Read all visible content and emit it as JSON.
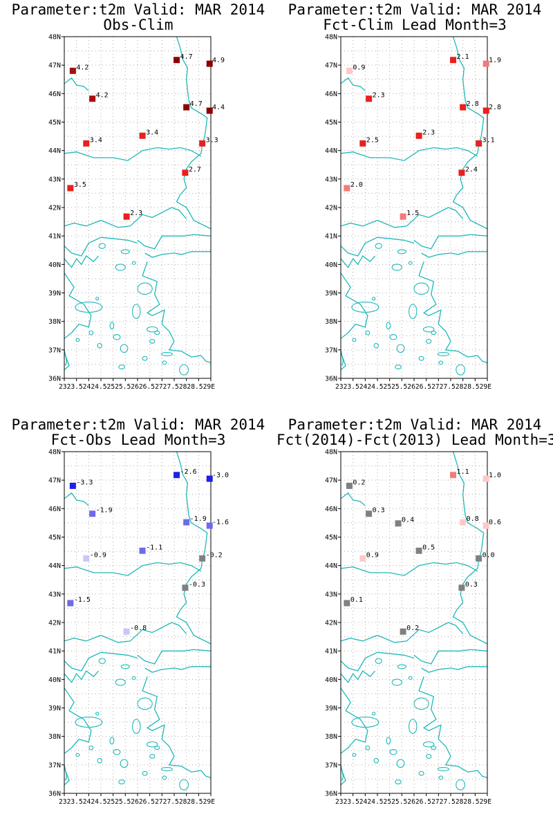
{
  "lat_labels": [
    "48N",
    "47N",
    "46N",
    "45N",
    "44N",
    "43N",
    "42N",
    "41N",
    "40N",
    "39N",
    "38N",
    "37N",
    "36N"
  ],
  "lon_label_text": "2323.52424.52525.52626.52727.52828.529E",
  "colors": {
    "coast": "#1fb8b8",
    "grid": "#a8a8a8",
    "frame": "#000000"
  },
  "stations": [
    {
      "lon": 23.35,
      "lat": 46.8
    },
    {
      "lon": 24.15,
      "lat": 45.82
    },
    {
      "lon": 23.9,
      "lat": 44.25
    },
    {
      "lon": 23.25,
      "lat": 42.68
    },
    {
      "lon": 25.55,
      "lat": 41.68
    },
    {
      "lon": 26.2,
      "lat": 44.52
    },
    {
      "lon": 27.6,
      "lat": 47.18
    },
    {
      "lon": 28.0,
      "lat": 45.52
    },
    {
      "lon": 28.95,
      "lat": 47.05
    },
    {
      "lon": 28.95,
      "lat": 45.4
    },
    {
      "lon": 28.65,
      "lat": 44.25
    },
    {
      "lon": 27.95,
      "lat": 43.22
    }
  ],
  "panels": [
    {
      "title_line1": "Parameter:t2m Valid: MAR 2014",
      "title_line2": "Obs-Clim",
      "points": [
        {
          "label": "4.2",
          "color": "#a31010"
        },
        {
          "label": "4.2",
          "color": "#a31010"
        },
        {
          "label": "3.4",
          "color": "#e82020"
        },
        {
          "label": "3.5",
          "color": "#e82020"
        },
        {
          "label": "2.3",
          "color": "#e82020"
        },
        {
          "label": "3.4",
          "color": "#e82020"
        },
        {
          "label": "4.7",
          "color": "#8b0000"
        },
        {
          "label": "4.7",
          "color": "#8b0000"
        },
        {
          "label": "4.9",
          "color": "#8b0000"
        },
        {
          "label": "4.4",
          "color": "#8b0000"
        },
        {
          "label": "3.3",
          "color": "#e82020"
        },
        {
          "label": "2.7",
          "color": "#e82020"
        }
      ]
    },
    {
      "title_line1": "Parameter:t2m Valid: MAR 2014",
      "title_line2": "Fct-Clim Lead Month=3",
      "points": [
        {
          "label": "0.9",
          "color": "#ffc8c8"
        },
        {
          "label": "2.3",
          "color": "#e82020"
        },
        {
          "label": "2.5",
          "color": "#e82020"
        },
        {
          "label": "2.0",
          "color": "#f47a7a"
        },
        {
          "label": "1.5",
          "color": "#f47a7a"
        },
        {
          "label": "2.3",
          "color": "#e82020"
        },
        {
          "label": "2.1",
          "color": "#e82020"
        },
        {
          "label": "2.8",
          "color": "#e82020"
        },
        {
          "label": "1.9",
          "color": "#f47a7a"
        },
        {
          "label": "2.8",
          "color": "#e82020"
        },
        {
          "label": "3.1",
          "color": "#e82020"
        },
        {
          "label": "2.4",
          "color": "#e82020"
        }
      ]
    },
    {
      "title_line1": "Parameter:t2m Valid: MAR 2014",
      "title_line2": "Fct-Obs Lead Month=3",
      "points": [
        {
          "label": "-3.3",
          "color": "#2020e6"
        },
        {
          "label": "-1.9",
          "color": "#6b6bec"
        },
        {
          "label": "-0.9",
          "color": "#c8c8f8"
        },
        {
          "label": "-1.5",
          "color": "#6b6bec"
        },
        {
          "label": "-0.8",
          "color": "#c8c8f8"
        },
        {
          "label": "-1.1",
          "color": "#6b6bec"
        },
        {
          "label": "-2.6",
          "color": "#2020e6"
        },
        {
          "label": "-1.9",
          "color": "#6b6bec"
        },
        {
          "label": "-3.0",
          "color": "#2020e6"
        },
        {
          "label": "-1.6",
          "color": "#6b6bec"
        },
        {
          "label": "-0.2",
          "color": "#808080"
        },
        {
          "label": "-0.3",
          "color": "#808080"
        }
      ]
    },
    {
      "title_line1": "Parameter:t2m Valid: MAR 2014",
      "title_line2": "Fct(2014)-Fct(2013) Lead Month=3",
      "points": [
        {
          "label": "0.2",
          "color": "#808080"
        },
        {
          "label": "0.3",
          "color": "#808080"
        },
        {
          "label": "0.9",
          "color": "#ffc8c8"
        },
        {
          "label": "0.1",
          "color": "#808080"
        },
        {
          "label": "0.2",
          "color": "#808080"
        },
        {
          "label": "0.5",
          "color": "#808080"
        },
        {
          "label": "1.1",
          "color": "#f47a7a"
        },
        {
          "label": "0.8",
          "color": "#ffc8c8"
        },
        {
          "label": "1.0",
          "color": "#ffc8c8"
        },
        {
          "label": "0.6",
          "color": "#ffc8c8"
        },
        {
          "label": "0.0",
          "color": "#808080"
        },
        {
          "label": "0.3",
          "color": "#808080"
        }
      ],
      "extra_points": [
        {
          "lon": 25.35,
          "lat": 45.48,
          "label": "0.4",
          "color": "#808080"
        }
      ]
    }
  ]
}
